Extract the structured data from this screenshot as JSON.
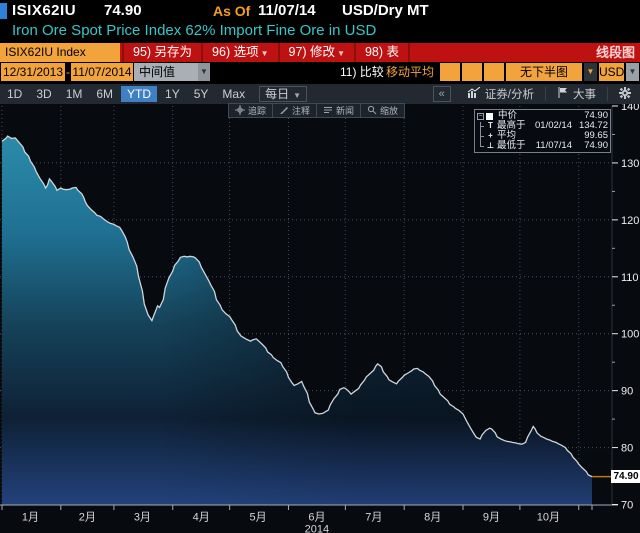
{
  "header": {
    "ticker": "ISIX62IU",
    "price": "74.90",
    "as_of_label": "As Of",
    "as_of_date": "11/07/14",
    "unit": "USD/Dry MT",
    "description": "Iron Ore Spot Price Index 62% Import Fine Ore in USD"
  },
  "menu_bar": {
    "security_tab": "ISIX62IU Index",
    "items": [
      {
        "label": "95) 另存为",
        "arrow": false
      },
      {
        "label": "96) 选项",
        "arrow": true
      },
      {
        "label": "97) 修改",
        "arrow": true
      },
      {
        "label": "98) 表",
        "arrow": false
      }
    ],
    "right_label": "线段图"
  },
  "settings_bar": {
    "date_from": "12/31/2013",
    "date_separator": "-",
    "date_to": "11/07/2014",
    "field_select": "中间值",
    "compare_label": "11) 比较",
    "moving_avg_label": "移动平均",
    "lower_panel_select": "无下半图",
    "currency_select": "USD",
    "arrow_glyph": "▼"
  },
  "period_bar": {
    "tabs": [
      {
        "label": "1D",
        "selected": false
      },
      {
        "label": "3D",
        "selected": false
      },
      {
        "label": "1M",
        "selected": false
      },
      {
        "label": "6M",
        "selected": false
      },
      {
        "label": "YTD",
        "selected": true
      },
      {
        "label": "1Y",
        "selected": false
      },
      {
        "label": "5Y",
        "selected": false
      },
      {
        "label": "Max",
        "selected": false
      }
    ],
    "frequency": "每日",
    "collapse_button": "«",
    "security_analysis": "证券/分析",
    "events": "大事"
  },
  "chart_toolbar": {
    "buttons": [
      {
        "icon": "crosshair",
        "label": "追踪"
      },
      {
        "icon": "pencil",
        "label": "注释"
      },
      {
        "icon": "news",
        "label": "新闻"
      },
      {
        "icon": "magnifier",
        "label": "缩放"
      }
    ]
  },
  "legend": {
    "collapse_glyph": "−",
    "series_label": "中价",
    "series_value": "74.90",
    "rows": [
      {
        "marker_glyph": "T",
        "label": "最高于",
        "date": "01/02/14",
        "value": "134.72"
      },
      {
        "marker_glyph": "+",
        "label": "平均",
        "date": "",
        "value": "99.65"
      },
      {
        "marker_glyph": "⊥",
        "label": "最低于",
        "date": "11/07/14",
        "value": "74.90"
      }
    ]
  },
  "chart_data": {
    "type": "area",
    "title": "Iron Ore Spot Price Index 62% Import Fine Ore in USD",
    "series_name": "中价",
    "x_unit": "day_of_year_2014",
    "x_range_days": [
      0,
      311
    ],
    "date_range": [
      "12/31/2013",
      "11/07/2014"
    ],
    "month_start_days": [
      0,
      31,
      59,
      90,
      120,
      151,
      181,
      212,
      243,
      273,
      304
    ],
    "month_mid_days": [
      15,
      45,
      74,
      105,
      135,
      166,
      196,
      227,
      258,
      288
    ],
    "month_labels": [
      "1月",
      "2月",
      "3月",
      "4月",
      "5月",
      "6月",
      "7月",
      "8月",
      "9月",
      "10月"
    ],
    "year_label": "2014",
    "ylim": [
      70,
      140
    ],
    "y_ticks": [
      140,
      130,
      120,
      110,
      100,
      90,
      80,
      70
    ],
    "y_minor_ticks": [
      135,
      125,
      115,
      105,
      95,
      85,
      75
    ],
    "grid": "dotted",
    "legend_position": "top-right",
    "last_price": 74.9,
    "last_price_label": "74.90",
    "high": {
      "date": "01/02/14",
      "value": 134.72
    },
    "low": {
      "date": "11/07/14",
      "value": 74.9
    },
    "average": 99.65,
    "points": [
      [
        0,
        133.8
      ],
      [
        2,
        134.3
      ],
      [
        3,
        134.72
      ],
      [
        5,
        134.3
      ],
      [
        7,
        134.4
      ],
      [
        9,
        133.6
      ],
      [
        11,
        132.8
      ],
      [
        12,
        131.9
      ],
      [
        14,
        131.2
      ],
      [
        15,
        130.3
      ],
      [
        17,
        129.3
      ],
      [
        18,
        128.5
      ],
      [
        20,
        127.3
      ],
      [
        22,
        126.3
      ],
      [
        23,
        125.6
      ],
      [
        24,
        126.1
      ],
      [
        25,
        127.2
      ],
      [
        26,
        126.8
      ],
      [
        28,
        125.9
      ],
      [
        29,
        125.2
      ],
      [
        31,
        125.6
      ],
      [
        32,
        125.4
      ],
      [
        34,
        125.3
      ],
      [
        36,
        125.4
      ],
      [
        37,
        125.6
      ],
      [
        39,
        125.7
      ],
      [
        40,
        125.2
      ],
      [
        42,
        124.6
      ],
      [
        43,
        124.0
      ],
      [
        44,
        123.1
      ],
      [
        45,
        122.5
      ],
      [
        47,
        121.8
      ],
      [
        49,
        121.2
      ],
      [
        50,
        120.8
      ],
      [
        52,
        120.6
      ],
      [
        53,
        120.3
      ],
      [
        55,
        119.8
      ],
      [
        57,
        119.4
      ],
      [
        59,
        119.2
      ],
      [
        60,
        119.0
      ],
      [
        62,
        118.7
      ],
      [
        63,
        118.2
      ],
      [
        65,
        117.0
      ],
      [
        66,
        116.1
      ],
      [
        67,
        114.8
      ],
      [
        69,
        113.5
      ],
      [
        71,
        111.9
      ],
      [
        72,
        110.0
      ],
      [
        74,
        107.5
      ],
      [
        75,
        105.2
      ],
      [
        77,
        103.3
      ],
      [
        79,
        102.3
      ],
      [
        80,
        103.2
      ],
      [
        82,
        104.9
      ],
      [
        83,
        104.6
      ],
      [
        85,
        106.0
      ],
      [
        86,
        108.0
      ],
      [
        88,
        109.8
      ],
      [
        90,
        111.0
      ],
      [
        91,
        112.0
      ],
      [
        93,
        112.8
      ],
      [
        94,
        113.4
      ],
      [
        96,
        113.6
      ],
      [
        98,
        113.5
      ],
      [
        99,
        113.6
      ],
      [
        101,
        113.5
      ],
      [
        102,
        113.3
      ],
      [
        104,
        112.6
      ],
      [
        105,
        111.7
      ],
      [
        107,
        110.5
      ],
      [
        109,
        109.3
      ],
      [
        110,
        108.6
      ],
      [
        112,
        107.4
      ],
      [
        113,
        106.0
      ],
      [
        115,
        105.0
      ],
      [
        116,
        104.2
      ],
      [
        118,
        103.5
      ],
      [
        120,
        103.0
      ],
      [
        121,
        102.5
      ],
      [
        123,
        101.5
      ],
      [
        124,
        100.5
      ],
      [
        126,
        99.6
      ],
      [
        128,
        99.2
      ],
      [
        129,
        99.0
      ],
      [
        131,
        98.7
      ],
      [
        132,
        98.9
      ],
      [
        134,
        99.1
      ],
      [
        135,
        98.8
      ],
      [
        137,
        98.2
      ],
      [
        139,
        97.5
      ],
      [
        140,
        96.8
      ],
      [
        142,
        96.3
      ],
      [
        143,
        95.8
      ],
      [
        145,
        95.3
      ],
      [
        147,
        94.9
      ],
      [
        148,
        94.2
      ],
      [
        150,
        93.3
      ],
      [
        151,
        92.3
      ],
      [
        153,
        91.3
      ],
      [
        154,
        90.9
      ],
      [
        156,
        91.2
      ],
      [
        158,
        91.6
      ],
      [
        159,
        90.8
      ],
      [
        161,
        89.5
      ],
      [
        162,
        88.0
      ],
      [
        164,
        86.8
      ],
      [
        165,
        86.1
      ],
      [
        167,
        85.9
      ],
      [
        169,
        86.0
      ],
      [
        170,
        86.2
      ],
      [
        172,
        86.6
      ],
      [
        173,
        87.5
      ],
      [
        175,
        88.6
      ],
      [
        177,
        89.4
      ],
      [
        178,
        90.2
      ],
      [
        180,
        90.5
      ],
      [
        181,
        90.4
      ],
      [
        183,
        89.8
      ],
      [
        184,
        89.4
      ],
      [
        186,
        89.9
      ],
      [
        188,
        90.4
      ],
      [
        189,
        91.0
      ],
      [
        191,
        91.8
      ],
      [
        192,
        92.4
      ],
      [
        194,
        93.0
      ],
      [
        196,
        93.6
      ],
      [
        197,
        94.3
      ],
      [
        198,
        94.7
      ],
      [
        200,
        94.2
      ],
      [
        201,
        93.3
      ],
      [
        203,
        92.5
      ],
      [
        204,
        91.9
      ],
      [
        206,
        91.5
      ],
      [
        208,
        91.2
      ],
      [
        209,
        91.7
      ],
      [
        211,
        92.3
      ],
      [
        212,
        92.7
      ],
      [
        214,
        93.1
      ],
      [
        216,
        93.5
      ],
      [
        217,
        93.8
      ],
      [
        219,
        93.9
      ],
      [
        220,
        93.6
      ],
      [
        222,
        93.3
      ],
      [
        223,
        93.0
      ],
      [
        225,
        92.5
      ],
      [
        227,
        91.7
      ],
      [
        228,
        90.9
      ],
      [
        230,
        90.1
      ],
      [
        231,
        89.4
      ],
      [
        233,
        88.8
      ],
      [
        235,
        88.2
      ],
      [
        236,
        87.6
      ],
      [
        238,
        87.2
      ],
      [
        239,
        86.9
      ],
      [
        241,
        86.5
      ],
      [
        243,
        85.9
      ],
      [
        245,
        84.6
      ],
      [
        247,
        83.4
      ],
      [
        249,
        82.3
      ],
      [
        250,
        81.8
      ],
      [
        252,
        81.5
      ],
      [
        253,
        82.2
      ],
      [
        255,
        83.0
      ],
      [
        257,
        83.4
      ],
      [
        258,
        83.3
      ],
      [
        260,
        82.6
      ],
      [
        261,
        81.9
      ],
      [
        263,
        81.5
      ],
      [
        265,
        81.2
      ],
      [
        266,
        81.1
      ],
      [
        268,
        81.0
      ],
      [
        269,
        80.9
      ],
      [
        271,
        80.8
      ],
      [
        272,
        80.7
      ],
      [
        274,
        80.6
      ],
      [
        276,
        80.9
      ],
      [
        277,
        81.8
      ],
      [
        279,
        83.0
      ],
      [
        280,
        83.7
      ],
      [
        281,
        83.3
      ],
      [
        282,
        82.6
      ],
      [
        284,
        82.0
      ],
      [
        286,
        81.7
      ],
      [
        287,
        81.5
      ],
      [
        289,
        81.3
      ],
      [
        290,
        81.1
      ],
      [
        292,
        80.9
      ],
      [
        293,
        80.7
      ],
      [
        295,
        80.4
      ],
      [
        297,
        80.0
      ],
      [
        298,
        79.5
      ],
      [
        300,
        78.9
      ],
      [
        301,
        78.3
      ],
      [
        303,
        77.6
      ],
      [
        304,
        77.1
      ],
      [
        306,
        76.4
      ],
      [
        308,
        75.8
      ],
      [
        309,
        75.2
      ],
      [
        311,
        74.9
      ]
    ]
  },
  "colors": {
    "amber": "#F2A33C",
    "menu_red": "#BE1212",
    "description_cyan": "#35C8C8",
    "selected_tab_blue": "#3F80C4",
    "cursor_blue": "#2F80D9",
    "chart_bg": "#070A0F",
    "grid": "#49515A",
    "line": "#CCD6DC",
    "area_top_teal": "#2F93B0",
    "area_mid": "#154259",
    "area_dark": "#0E2136",
    "area_bottom_glow": "#2F58AA",
    "last_price_line": "#B9791E",
    "axis_text": "#ECEFF1"
  }
}
